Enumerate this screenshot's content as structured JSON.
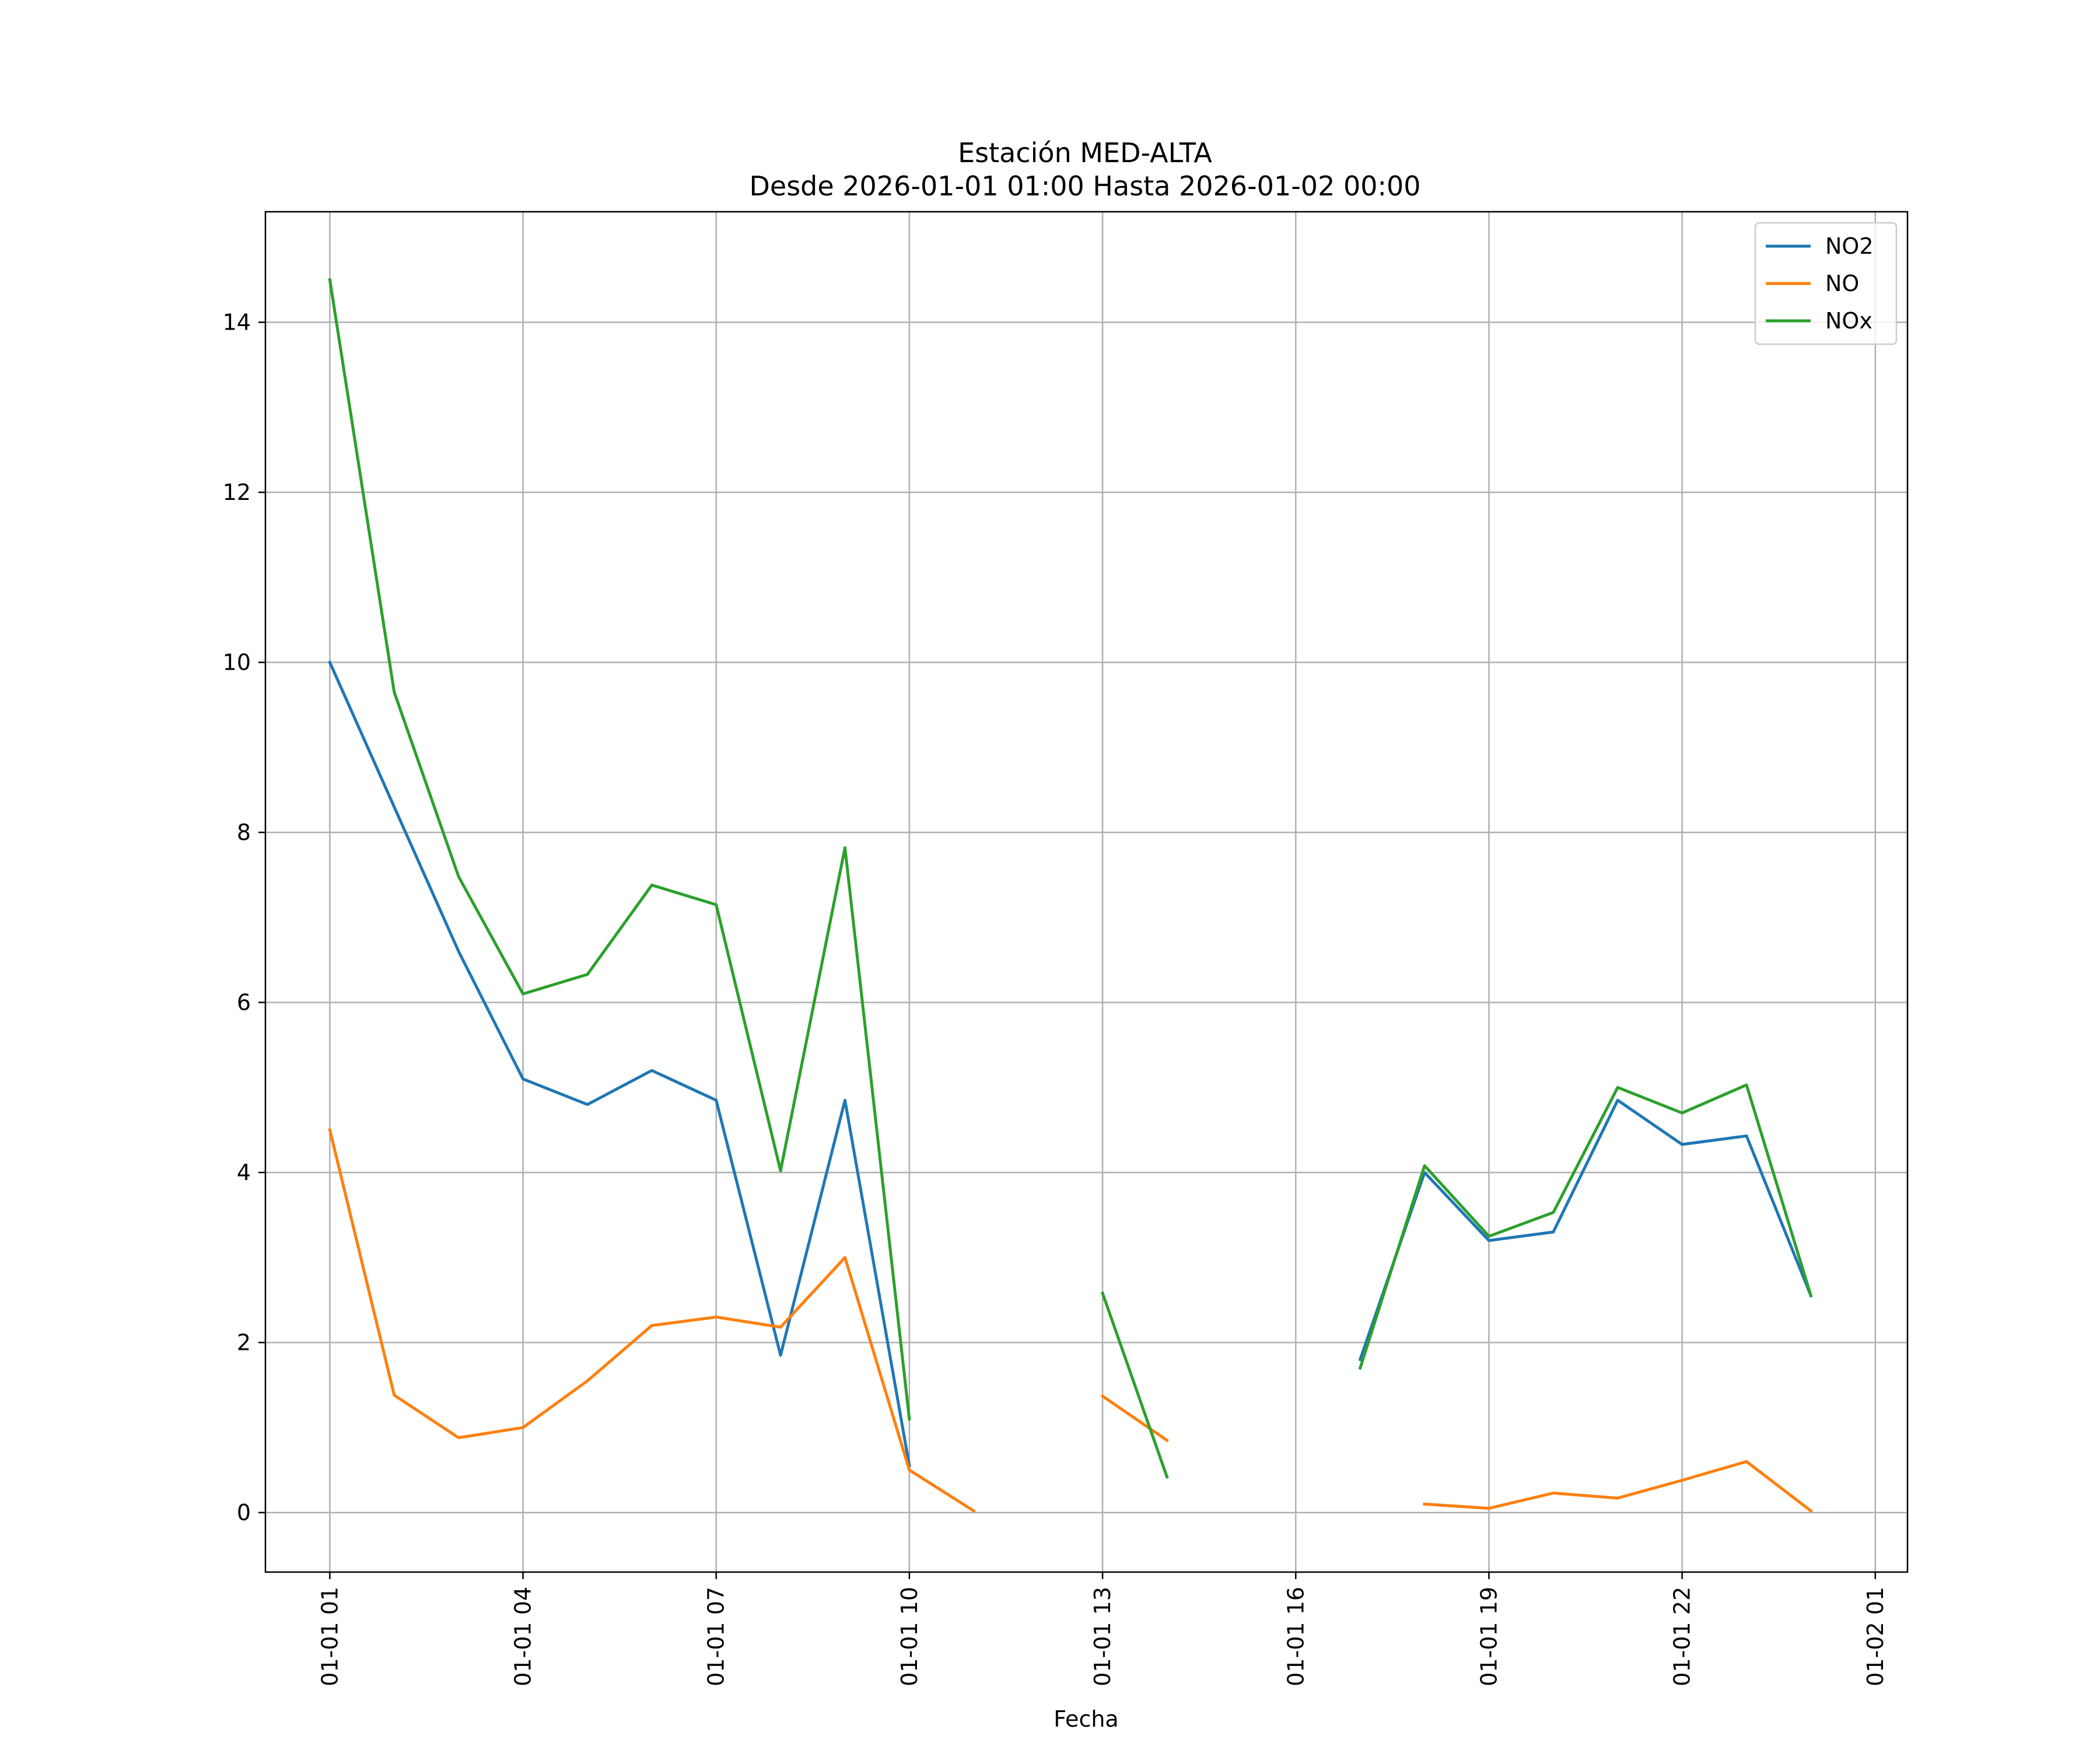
{
  "chart_data": {
    "type": "line",
    "title": [
      "Estación MED-ALTA",
      "Desde 2026-01-01 01:00 Hasta 2026-01-02 00:00"
    ],
    "xlabel": "Fecha",
    "ylabel": "",
    "x_start": "2026-01-01 01:00",
    "x_step_hours": 1,
    "xlim": [
      "2026-01-01 00:00",
      "2026-01-02 01:30"
    ],
    "ylim": [
      -0.7,
      15.3
    ],
    "x_ticks": [
      {
        "label": "01-01 01",
        "time": "2026-01-01 01:00"
      },
      {
        "label": "01-01 04",
        "time": "2026-01-01 04:00"
      },
      {
        "label": "01-01 07",
        "time": "2026-01-01 07:00"
      },
      {
        "label": "01-01 10",
        "time": "2026-01-01 10:00"
      },
      {
        "label": "01-01 13",
        "time": "2026-01-01 13:00"
      },
      {
        "label": "01-01 16",
        "time": "2026-01-01 16:00"
      },
      {
        "label": "01-01 19",
        "time": "2026-01-01 19:00"
      },
      {
        "label": "01-01 22",
        "time": "2026-01-01 22:00"
      },
      {
        "label": "01-02 01",
        "time": "2026-01-02 01:00"
      }
    ],
    "y_ticks": [
      0,
      2,
      4,
      6,
      8,
      10,
      12,
      14
    ],
    "grid": true,
    "legend_position": "top-right",
    "series": [
      {
        "name": "NO2",
        "color": "#1f77b4",
        "values": [
          10.0,
          8.3,
          6.6,
          5.1,
          4.8,
          5.2,
          4.85,
          1.85,
          4.85,
          0.55,
          null,
          null,
          null,
          null,
          null,
          null,
          1.8,
          4.0,
          3.2,
          3.3,
          4.85,
          4.33,
          4.43,
          2.55
        ]
      },
      {
        "name": "NO",
        "color": "#ff7f0e",
        "values": [
          4.5,
          1.38,
          0.88,
          1.0,
          1.55,
          2.2,
          2.3,
          2.18,
          3.0,
          0.5,
          0.02,
          null,
          1.37,
          0.85,
          null,
          null,
          null,
          0.1,
          0.05,
          0.23,
          0.17,
          0.38,
          0.6,
          0.02
        ]
      },
      {
        "name": "NOx",
        "color": "#2ca02c",
        "values": [
          14.5,
          9.65,
          7.48,
          6.1,
          6.33,
          7.38,
          7.15,
          4.02,
          7.82,
          1.1,
          null,
          null,
          2.58,
          0.42,
          null,
          null,
          1.7,
          4.08,
          3.25,
          3.53,
          5.0,
          4.7,
          5.03,
          2.55
        ]
      }
    ]
  }
}
